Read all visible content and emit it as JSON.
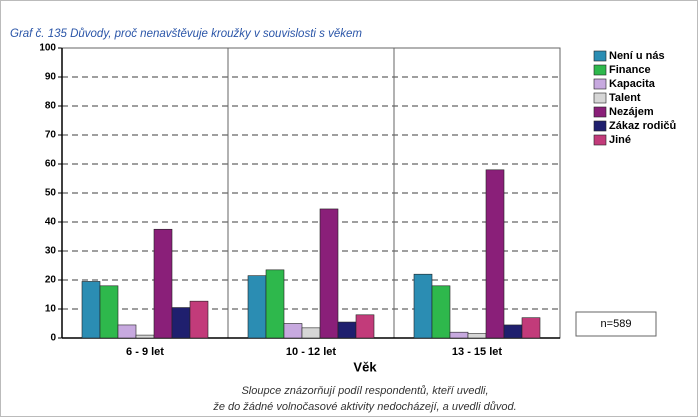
{
  "chart_data": {
    "type": "bar",
    "title": "Graf č. 135 Důvody, proč nenavštěvuje kroužky v souvislosti s věkem",
    "xlabel": "Věk",
    "categories": [
      "6 - 9 let",
      "10 - 12 let",
      "13 - 15 let"
    ],
    "series": [
      {
        "name": "Není u nás",
        "color": "#2b8db3",
        "values": [
          19.5,
          21.5,
          22
        ]
      },
      {
        "name": "Finance",
        "color": "#2eb84c",
        "values": [
          18,
          23.5,
          18
        ]
      },
      {
        "name": "Kapacita",
        "color": "#c7a9df",
        "values": [
          4.5,
          5,
          2
        ]
      },
      {
        "name": "Talent",
        "color": "#d6d6d6",
        "values": [
          1,
          3.5,
          1.5
        ]
      },
      {
        "name": "Nezájem",
        "color": "#8a1f79",
        "values": [
          37.5,
          44.5,
          58
        ]
      },
      {
        "name": "Zákaz rodičů",
        "color": "#1f1f6e",
        "values": [
          10.5,
          5.5,
          4.5
        ]
      },
      {
        "name": "Jiné",
        "color": "#c23b7a",
        "values": [
          12.7,
          8,
          7
        ]
      }
    ],
    "ylim": [
      0,
      100
    ],
    "yticks": [
      0,
      10,
      20,
      30,
      40,
      50,
      60,
      70,
      80,
      90,
      100
    ],
    "grid": true,
    "legend": "right",
    "annotation": "n=589",
    "caption": [
      "Sloupce znázorňují podíl respondentů, kteří uvedli,",
      "že do žádné volnočasové aktivity nedocházejí, a uvedli důvod."
    ]
  }
}
